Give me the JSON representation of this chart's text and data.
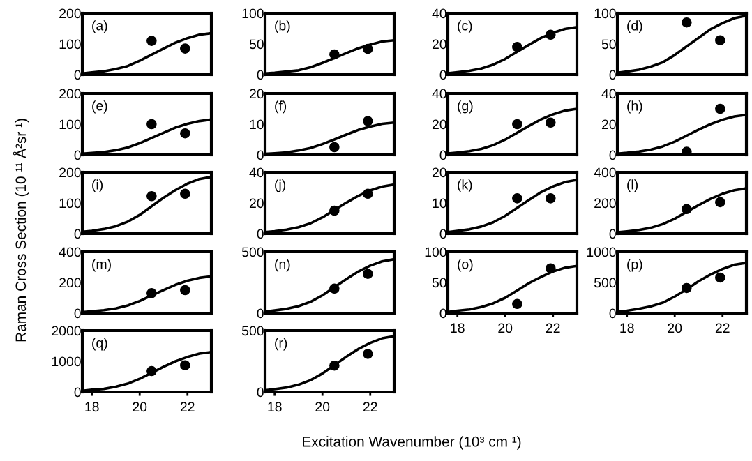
{
  "chart_data": [
    {
      "type": "line",
      "xlim": [
        17.6,
        23
      ],
      "ylim": [
        0,
        200
      ],
      "yticks": [
        0,
        100,
        200
      ],
      "tick_labels": "y",
      "annotations": [
        "(a)"
      ],
      "series": [
        {
          "type": "line",
          "color": "#000000",
          "x": [
            17.6,
            18,
            18.5,
            19,
            19.5,
            20,
            20.5,
            21,
            21.5,
            22,
            22.5,
            23
          ],
          "values": [
            4,
            7,
            11,
            18,
            28,
            45,
            65,
            85,
            104,
            119,
            130,
            135
          ]
        },
        {
          "type": "scatter",
          "color": "#000000",
          "marker": "circle",
          "x": [
            20.5,
            21.9
          ],
          "values": [
            110,
            85
          ]
        }
      ]
    },
    {
      "type": "line",
      "xlim": [
        17.6,
        23
      ],
      "ylim": [
        0,
        100
      ],
      "yticks": [
        0,
        50,
        100
      ],
      "tick_labels": "y",
      "annotations": [
        "(b)"
      ],
      "series": [
        {
          "type": "line",
          "color": "#000000",
          "x": [
            17.6,
            18,
            18.5,
            19,
            19.5,
            20,
            20.5,
            21,
            21.5,
            22,
            22.5,
            23
          ],
          "values": [
            2,
            3,
            5,
            7,
            12,
            19,
            27,
            35,
            43,
            49,
            54,
            56
          ]
        },
        {
          "type": "scatter",
          "color": "#000000",
          "marker": "circle",
          "x": [
            20.5,
            21.9
          ],
          "values": [
            33,
            42
          ]
        }
      ]
    },
    {
      "type": "line",
      "xlim": [
        17.6,
        23
      ],
      "ylim": [
        0,
        40
      ],
      "yticks": [
        0,
        20,
        40
      ],
      "tick_labels": "y",
      "annotations": [
        "(c)"
      ],
      "series": [
        {
          "type": "line",
          "color": "#000000",
          "x": [
            17.6,
            18,
            18.5,
            19,
            19.5,
            20,
            20.5,
            21,
            21.5,
            22,
            22.5,
            23
          ],
          "values": [
            0.9,
            1.6,
            2.5,
            4,
            6.5,
            10.2,
            14.9,
            19.5,
            23.9,
            27.3,
            29.8,
            31
          ]
        },
        {
          "type": "scatter",
          "color": "#000000",
          "marker": "circle",
          "x": [
            20.5,
            21.9
          ],
          "values": [
            18,
            26
          ]
        }
      ]
    },
    {
      "type": "line",
      "xlim": [
        17.6,
        23
      ],
      "ylim": [
        0,
        100
      ],
      "yticks": [
        0,
        50,
        100
      ],
      "tick_labels": "y",
      "annotations": [
        "(d)"
      ],
      "series": [
        {
          "type": "line",
          "color": "#000000",
          "x": [
            17.6,
            18,
            18.5,
            19,
            19.5,
            20,
            20.5,
            21,
            21.5,
            22,
            22.5,
            23
          ],
          "values": [
            3,
            5,
            8,
            13,
            20,
            32,
            46,
            60,
            74,
            84,
            92,
            96
          ]
        },
        {
          "type": "scatter",
          "color": "#000000",
          "marker": "circle",
          "x": [
            20.5,
            21.9
          ],
          "values": [
            85,
            56
          ]
        }
      ]
    },
    {
      "type": "line",
      "xlim": [
        17.6,
        23
      ],
      "ylim": [
        0,
        200
      ],
      "yticks": [
        0,
        100,
        200
      ],
      "tick_labels": "y",
      "annotations": [
        "(e)"
      ],
      "series": [
        {
          "type": "line",
          "color": "#000000",
          "x": [
            17.6,
            18,
            18.5,
            19,
            19.5,
            20,
            20.5,
            21,
            21.5,
            22,
            22.5,
            23
          ],
          "values": [
            4,
            6,
            9,
            15,
            24,
            38,
            55,
            72,
            89,
            101,
            110,
            115
          ]
        },
        {
          "type": "scatter",
          "color": "#000000",
          "marker": "circle",
          "x": [
            20.5,
            21.9
          ],
          "values": [
            100,
            70
          ]
        }
      ]
    },
    {
      "type": "line",
      "xlim": [
        17.6,
        23
      ],
      "ylim": [
        0,
        20
      ],
      "yticks": [
        0,
        10,
        20
      ],
      "tick_labels": "y",
      "annotations": [
        "(f)"
      ],
      "series": [
        {
          "type": "line",
          "color": "#000000",
          "x": [
            17.6,
            18,
            18.5,
            19,
            19.5,
            20,
            20.5,
            21,
            21.5,
            22,
            22.5,
            23
          ],
          "values": [
            0.3,
            0.5,
            0.8,
            1.4,
            2.2,
            3.5,
            5,
            6.6,
            8.1,
            9.2,
            10.1,
            10.5
          ]
        },
        {
          "type": "scatter",
          "color": "#000000",
          "marker": "circle",
          "x": [
            20.5,
            21.9
          ],
          "values": [
            2.5,
            11
          ]
        }
      ]
    },
    {
      "type": "line",
      "xlim": [
        17.6,
        23
      ],
      "ylim": [
        0,
        40
      ],
      "yticks": [
        0,
        20,
        40
      ],
      "tick_labels": "y",
      "annotations": [
        "(g)"
      ],
      "series": [
        {
          "type": "line",
          "color": "#000000",
          "x": [
            17.6,
            18,
            18.5,
            19,
            19.5,
            20,
            20.5,
            21,
            21.5,
            22,
            22.5,
            23
          ],
          "values": [
            0.9,
            1.5,
            2.4,
            3.9,
            6.3,
            9.9,
            14.4,
            18.9,
            23.1,
            26.4,
            28.8,
            30
          ]
        },
        {
          "type": "scatter",
          "color": "#000000",
          "marker": "circle",
          "x": [
            20.5,
            21.9
          ],
          "values": [
            20,
            21
          ]
        }
      ]
    },
    {
      "type": "line",
      "xlim": [
        17.6,
        23
      ],
      "ylim": [
        0,
        40
      ],
      "yticks": [
        0,
        20,
        40
      ],
      "tick_labels": "y",
      "annotations": [
        "(h)"
      ],
      "series": [
        {
          "type": "line",
          "color": "#000000",
          "x": [
            17.6,
            18,
            18.5,
            19,
            19.5,
            20,
            20.5,
            21,
            21.5,
            22,
            22.5,
            23
          ],
          "values": [
            0.8,
            1.3,
            2.1,
            3.4,
            5.5,
            8.6,
            12.5,
            16.4,
            20,
            22.9,
            25,
            26
          ]
        },
        {
          "type": "scatter",
          "color": "#000000",
          "marker": "circle",
          "x": [
            20.5,
            21.9
          ],
          "values": [
            2,
            30
          ]
        }
      ]
    },
    {
      "type": "line",
      "xlim": [
        17.6,
        23
      ],
      "ylim": [
        0,
        200
      ],
      "yticks": [
        0,
        100,
        200
      ],
      "tick_labels": "y",
      "annotations": [
        "(i)"
      ],
      "ylabel": "Raman Cross Section (10 ¹¹ Å²sr ¹)",
      "series": [
        {
          "type": "line",
          "color": "#000000",
          "x": [
            17.6,
            18,
            18.5,
            19,
            19.5,
            20,
            20.5,
            21,
            21.5,
            22,
            22.5,
            23
          ],
          "values": [
            6,
            9,
            15,
            24,
            39,
            61,
            89,
            117,
            142,
            163,
            178,
            185
          ]
        },
        {
          "type": "scatter",
          "color": "#000000",
          "marker": "circle",
          "x": [
            20.5,
            21.9
          ],
          "values": [
            122,
            130
          ]
        }
      ]
    },
    {
      "type": "line",
      "xlim": [
        17.6,
        23
      ],
      "ylim": [
        0,
        40
      ],
      "yticks": [
        0,
        20,
        40
      ],
      "tick_labels": "y",
      "annotations": [
        "(j)"
      ],
      "series": [
        {
          "type": "line",
          "color": "#000000",
          "x": [
            17.6,
            18,
            18.5,
            19,
            19.5,
            20,
            20.5,
            21,
            21.5,
            22,
            22.5,
            23
          ],
          "values": [
            1,
            1.6,
            2.6,
            4.2,
            6.7,
            10.6,
            15.4,
            20.2,
            24.6,
            28.2,
            30.7,
            32
          ]
        },
        {
          "type": "scatter",
          "color": "#000000",
          "marker": "circle",
          "x": [
            20.5,
            21.9
          ],
          "values": [
            15,
            26
          ]
        }
      ]
    },
    {
      "type": "line",
      "xlim": [
        17.6,
        23
      ],
      "ylim": [
        0,
        20
      ],
      "yticks": [
        0,
        10,
        20
      ],
      "tick_labels": "y",
      "annotations": [
        "(k)"
      ],
      "series": [
        {
          "type": "line",
          "color": "#000000",
          "x": [
            17.6,
            18,
            18.5,
            19,
            19.5,
            20,
            20.5,
            21,
            21.5,
            22,
            22.5,
            23
          ],
          "values": [
            0.5,
            0.9,
            1.4,
            2.3,
            3.7,
            5.8,
            8.4,
            11,
            13.5,
            15.4,
            16.8,
            17.5
          ]
        },
        {
          "type": "scatter",
          "color": "#000000",
          "marker": "circle",
          "x": [
            20.5,
            21.9
          ],
          "values": [
            11.5,
            11.5
          ]
        }
      ]
    },
    {
      "type": "line",
      "xlim": [
        17.6,
        23
      ],
      "ylim": [
        0,
        400
      ],
      "yticks": [
        0,
        200,
        400
      ],
      "tick_labels": "y",
      "annotations": [
        "(l)"
      ],
      "series": [
        {
          "type": "line",
          "color": "#000000",
          "x": [
            17.6,
            18,
            18.5,
            19,
            19.5,
            20,
            20.5,
            21,
            21.5,
            22,
            22.5,
            23
          ],
          "values": [
            9,
            15,
            24,
            38,
            62,
            97,
            142,
            186,
            227,
            260,
            283,
            295
          ]
        },
        {
          "type": "scatter",
          "color": "#000000",
          "marker": "circle",
          "x": [
            20.5,
            21.9
          ],
          "values": [
            160,
            205
          ]
        }
      ]
    },
    {
      "type": "line",
      "xlim": [
        17.6,
        23
      ],
      "ylim": [
        0,
        400
      ],
      "yticks": [
        0,
        200,
        400
      ],
      "tick_labels": "y",
      "annotations": [
        "(m)"
      ],
      "series": [
        {
          "type": "line",
          "color": "#000000",
          "x": [
            17.6,
            18,
            18.5,
            19,
            19.5,
            20,
            20.5,
            21,
            21.5,
            22,
            22.5,
            23
          ],
          "values": [
            7,
            12,
            19,
            31,
            50,
            79,
            115,
            151,
            185,
            211,
            230,
            240
          ]
        },
        {
          "type": "scatter",
          "color": "#000000",
          "marker": "circle",
          "x": [
            20.5,
            21.9
          ],
          "values": [
            130,
            150
          ]
        }
      ]
    },
    {
      "type": "line",
      "xlim": [
        17.6,
        23
      ],
      "ylim": [
        0,
        500
      ],
      "yticks": [
        0,
        500
      ],
      "tick_labels": "y",
      "annotations": [
        "(n)"
      ],
      "series": [
        {
          "type": "line",
          "color": "#000000",
          "x": [
            17.6,
            18,
            18.5,
            19,
            19.5,
            20,
            20.5,
            21,
            21.5,
            22,
            22.5,
            23
          ],
          "values": [
            13,
            22,
            35,
            57,
            92,
            145,
            211,
            277,
            339,
            387,
            422,
            440
          ]
        },
        {
          "type": "scatter",
          "color": "#000000",
          "marker": "circle",
          "x": [
            20.5,
            21.9
          ],
          "values": [
            200,
            320
          ]
        }
      ]
    },
    {
      "type": "line",
      "xlim": [
        17.6,
        23
      ],
      "ylim": [
        0,
        100
      ],
      "yticks": [
        0,
        50,
        100
      ],
      "xticks": [
        18,
        20,
        22
      ],
      "annotations": [
        "(o)"
      ],
      "series": [
        {
          "type": "line",
          "color": "#000000",
          "x": [
            17.6,
            18,
            18.5,
            19,
            19.5,
            20,
            20.5,
            21,
            21.5,
            22,
            22.5,
            23
          ],
          "values": [
            2,
            4,
            6,
            10,
            16,
            25,
            37,
            49,
            59,
            68,
            74,
            77
          ]
        },
        {
          "type": "scatter",
          "color": "#000000",
          "marker": "circle",
          "x": [
            20.5,
            21.9
          ],
          "values": [
            15,
            73
          ]
        }
      ]
    },
    {
      "type": "line",
      "xlim": [
        17.6,
        23
      ],
      "ylim": [
        0,
        1000
      ],
      "yticks": [
        0,
        500,
        1000
      ],
      "xticks": [
        18,
        20,
        22
      ],
      "annotations": [
        "(p)"
      ],
      "series": [
        {
          "type": "line",
          "color": "#000000",
          "x": [
            17.6,
            18,
            18.5,
            19,
            19.5,
            20,
            20.5,
            21,
            21.5,
            22,
            22.5,
            23
          ],
          "values": [
            30,
            40,
            70,
            110,
            170,
            270,
            390,
            520,
            630,
            720,
            790,
            820
          ]
        },
        {
          "type": "scatter",
          "color": "#000000",
          "marker": "circle",
          "x": [
            20.5,
            21.9
          ],
          "values": [
            410,
            580
          ]
        }
      ]
    },
    {
      "type": "line",
      "xlim": [
        17.6,
        23
      ],
      "ylim": [
        0,
        2000
      ],
      "yticks": [
        0,
        1000,
        2000
      ],
      "xticks": [
        18,
        20,
        22
      ],
      "annotations": [
        "(q)"
      ],
      "series": [
        {
          "type": "line",
          "color": "#000000",
          "x": [
            17.6,
            18,
            18.5,
            19,
            19.5,
            20,
            20.5,
            21,
            21.5,
            22,
            22.5,
            23
          ],
          "values": [
            40,
            70,
            100,
            170,
            270,
            430,
            620,
            820,
            1000,
            1140,
            1250,
            1300
          ]
        },
        {
          "type": "scatter",
          "color": "#000000",
          "marker": "circle",
          "x": [
            20.5,
            21.9
          ],
          "values": [
            680,
            870
          ]
        }
      ]
    },
    {
      "type": "line",
      "xlim": [
        17.6,
        23
      ],
      "ylim": [
        0,
        500
      ],
      "yticks": [
        0,
        500
      ],
      "xticks": [
        18,
        20,
        22
      ],
      "annotations": [
        "(r)"
      ],
      "xlabel": "Excitation Wavenumber (10³ cm ¹)",
      "series": [
        {
          "type": "line",
          "color": "#000000",
          "x": [
            17.6,
            18,
            18.5,
            19,
            19.5,
            20,
            20.5,
            21,
            21.5,
            22,
            22.5,
            23
          ],
          "values": [
            14,
            23,
            36,
            59,
            96,
            150,
            218,
            287,
            350,
            400,
            437,
            455
          ]
        },
        {
          "type": "scatter",
          "color": "#000000",
          "marker": "circle",
          "x": [
            20.5,
            21.9
          ],
          "values": [
            215,
            310
          ]
        }
      ]
    }
  ]
}
